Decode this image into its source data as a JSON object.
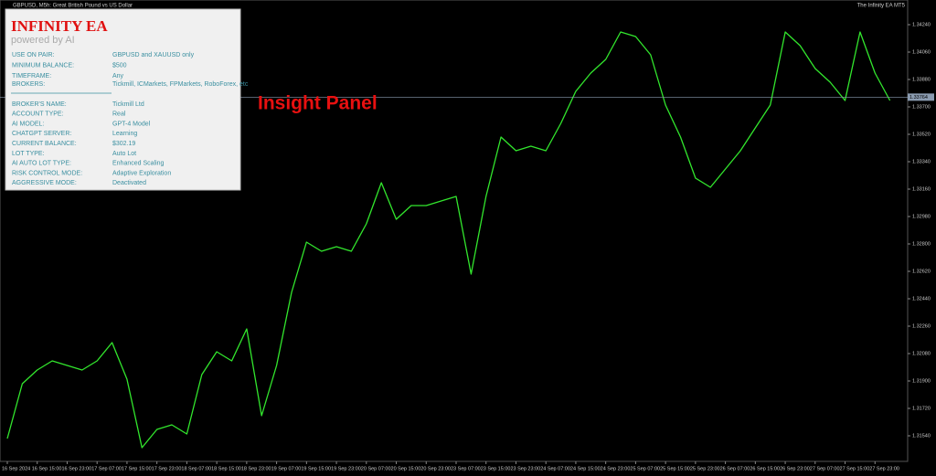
{
  "window": {
    "title": "GBPUSD, M5h:  Great British Pound vs US Dollar",
    "ea_name": "The Infinity EA MT5"
  },
  "panel": {
    "title": "INFINITY EA",
    "subtitle": "powered by AI",
    "settings": [
      [
        "USE ON PAIR:",
        "GBPUSD and XAUUSD only"
      ],
      [
        "MINIMUM BALANCE:",
        "$500"
      ],
      [
        "TIMEFRAME:",
        "Any"
      ],
      [
        "BROKERS:",
        "Tickmill, ICMarkets, FPMarkets, RoboForex, etc"
      ]
    ],
    "account": [
      [
        "BROKER'S NAME:",
        "Tickmill Ltd"
      ],
      [
        "ACCOUNT TYPE:",
        "Real"
      ],
      [
        "AI MODEL:",
        "GPT-4 Model"
      ],
      [
        "CHATGPT SERVER:",
        "Learning"
      ],
      [
        "CURRENT BALANCE:",
        "$302.19"
      ],
      [
        "LOT TYPE:",
        "Auto Lot"
      ],
      [
        "AI AUTO LOT TYPE:",
        "Enhanced Scaling"
      ],
      [
        "RISK CONTROL MODE:",
        "Adaptive Exploration"
      ],
      [
        "AGGRESSIVE MODE:",
        "Deactivated"
      ]
    ]
  },
  "annotation": "Insight Panel",
  "chart_data": {
    "type": "line",
    "color": "#32e62d",
    "x": [
      "16 Sep 2024",
      null,
      "16 Sep 15:00",
      null,
      "16 Sep 23:00",
      null,
      "17 Sep 07:00",
      null,
      "17 Sep 15:00",
      null,
      "17 Sep 23:00",
      null,
      "18 Sep 07:00",
      null,
      "18 Sep 15:00",
      null,
      "18 Sep 23:00",
      null,
      "19 Sep 07:00",
      null,
      "19 Sep 15:00",
      null,
      "19 Sep 23:00",
      null,
      "20 Sep 07:00",
      null,
      "20 Sep 15:00",
      null,
      "20 Sep 23:00",
      null,
      "23 Sep 07:00",
      null,
      "23 Sep 15:00",
      null,
      "23 Sep 23:00",
      null,
      "24 Sep 07:00",
      null,
      "24 Sep 15:00",
      null,
      "24 Sep 23:00",
      null,
      "25 Sep 07:00",
      null,
      "25 Sep 15:00",
      null,
      "25 Sep 23:00",
      null,
      "26 Sep 07:00",
      null,
      "26 Sep 15:00",
      null,
      "26 Sep 23:00",
      null,
      "27 Sep 07:00",
      null,
      "27 Sep 15:00",
      null,
      "27 Sep 23:00",
      null
    ],
    "values": [
      1.31522,
      1.31882,
      1.31972,
      1.32032,
      1.32002,
      1.31972,
      1.32032,
      1.32152,
      1.31912,
      1.31462,
      1.31582,
      1.31612,
      1.31552,
      1.31942,
      1.32092,
      1.32032,
      1.32242,
      1.31672,
      1.32002,
      1.32482,
      1.32812,
      1.32752,
      1.32782,
      1.32752,
      1.32932,
      1.33202,
      1.32962,
      1.33052,
      1.33052,
      1.33082,
      1.33112,
      1.32602,
      1.33112,
      1.33502,
      1.33412,
      1.33442,
      1.33412,
      1.33592,
      1.33802,
      1.33922,
      1.34012,
      1.34192,
      1.34162,
      1.34042,
      1.33712,
      1.33502,
      1.33232,
      1.33172,
      1.33292,
      1.33412,
      1.33562,
      1.33712,
      1.34192,
      1.34102,
      1.33952,
      1.33862,
      1.33742,
      1.34192,
      1.33922,
      1.33742
    ],
    "ylim": [
      1.31402,
      1.34402
    ],
    "yticks": [
      {
        "value": 1.3154,
        "label": "1.31540"
      },
      {
        "value": 1.3172,
        "label": "1.31720"
      },
      {
        "value": 1.319,
        "label": "1.31900"
      },
      {
        "value": 1.3208,
        "label": "1.32080"
      },
      {
        "value": 1.3226,
        "label": "1.32260"
      },
      {
        "value": 1.3244,
        "label": "1.32440"
      },
      {
        "value": 1.3262,
        "label": "1.32620"
      },
      {
        "value": 1.328,
        "label": "1.32800"
      },
      {
        "value": 1.3298,
        "label": "1.32980"
      },
      {
        "value": 1.3316,
        "label": "1.33160"
      },
      {
        "value": 1.3334,
        "label": "1.33340"
      },
      {
        "value": 1.3352,
        "label": "1.33520"
      },
      {
        "value": 1.337,
        "label": "1.33700"
      },
      {
        "value": 1.3388,
        "label": "1.33880"
      },
      {
        "value": 1.3406,
        "label": "1.34060"
      },
      {
        "value": 1.3424,
        "label": "1.34240"
      }
    ],
    "current_price": {
      "value": 1.33764,
      "label": "1.33764"
    }
  }
}
